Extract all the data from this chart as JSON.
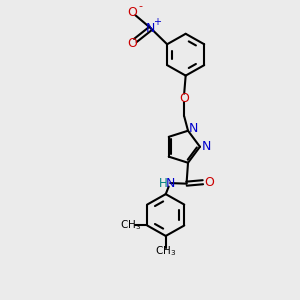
{
  "bg_color": "#ebebeb",
  "bond_color": "#000000",
  "N_color": "#0000cc",
  "O_color": "#cc0000",
  "H_color": "#008080",
  "line_width": 1.5,
  "figsize": [
    3.0,
    3.0
  ],
  "dpi": 100,
  "xlim": [
    0,
    10
  ],
  "ylim": [
    0,
    10
  ]
}
